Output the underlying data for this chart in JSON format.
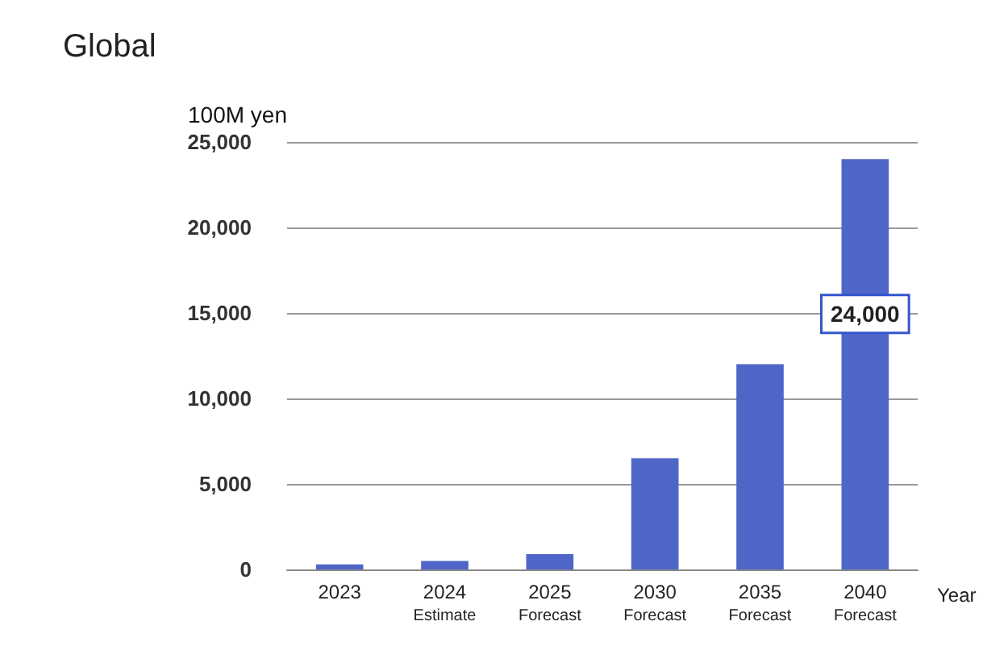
{
  "chart_data": {
    "type": "bar",
    "title": "Global",
    "ylabel": "100M yen",
    "xlabel": "Year",
    "categories": [
      "2023",
      "2024\nEstimate",
      "2025\nForecast",
      "2030\nForecast",
      "2035\nForecast",
      "2040\nForecast"
    ],
    "values": [
      300,
      500,
      900,
      6500,
      12000,
      24000
    ],
    "color": "#4f66c8",
    "value_labels": [
      null,
      null,
      null,
      null,
      null,
      "24,000"
    ],
    "ylim": [
      0,
      25000
    ],
    "yticks": [
      0,
      {
        "value": 5000,
        "label": "5,000"
      },
      {
        "value": 10000,
        "label": "10,000"
      },
      {
        "value": 15000,
        "label": "15,000"
      },
      {
        "value": 20000,
        "label": "20,000"
      },
      {
        "value": 25000,
        "label": "25,000"
      }
    ],
    "grid": "y"
  }
}
